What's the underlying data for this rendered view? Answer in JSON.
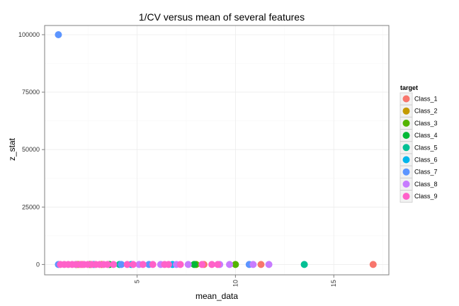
{
  "chart_data": {
    "type": "scatter",
    "title": "1/CV versus mean of several features",
    "xlabel": "mean_data",
    "ylabel": "z_stat",
    "xlim": [
      0.3,
      17.8
    ],
    "ylim": [
      -4500,
      104000
    ],
    "x_ticks": [
      5,
      10,
      15
    ],
    "y_ticks": [
      0,
      25000,
      50000,
      75000,
      100000
    ],
    "x_tick_labels": [
      "5",
      "10",
      "15"
    ],
    "y_tick_labels": [
      "0",
      "25000",
      "50000",
      "75000",
      "100000"
    ],
    "grid": true,
    "legend": {
      "title": "target",
      "position": "right"
    },
    "series": [
      {
        "name": "Class_1",
        "color": "#F8766D",
        "points": [
          [
            11.3,
            0
          ],
          [
            17.0,
            0
          ],
          [
            8.4,
            0
          ],
          [
            2.2,
            0
          ]
        ]
      },
      {
        "name": "Class_2",
        "color": "#C49A00",
        "points": [
          [
            2.0,
            0
          ],
          [
            3.2,
            0
          ]
        ]
      },
      {
        "name": "Class_3",
        "color": "#53B400",
        "points": [
          [
            10.0,
            0
          ],
          [
            8.0,
            0
          ],
          [
            2.6,
            0
          ]
        ]
      },
      {
        "name": "Class_4",
        "color": "#00B936",
        "points": [
          [
            7.9,
            0
          ],
          [
            3.6,
            0
          ],
          [
            1.9,
            0
          ]
        ]
      },
      {
        "name": "Class_5",
        "color": "#00C094",
        "points": [
          [
            13.5,
            0
          ],
          [
            4.1,
            0
          ]
        ]
      },
      {
        "name": "Class_6",
        "color": "#00B6EB",
        "points": [
          [
            6.8,
            0
          ],
          [
            4.7,
            0
          ],
          [
            2.8,
            0
          ]
        ]
      },
      {
        "name": "Class_7",
        "color": "#5C95FF",
        "points": [
          [
            1.0,
            100000
          ],
          [
            1.0,
            0
          ],
          [
            4.2,
            0
          ],
          [
            5.6,
            0
          ],
          [
            10.7,
            0
          ]
        ]
      },
      {
        "name": "Class_8",
        "color": "#C77CFF",
        "points": [
          [
            11.7,
            0
          ],
          [
            10.9,
            0
          ],
          [
            9.7,
            0
          ],
          [
            9.2,
            0
          ],
          [
            7.6,
            0
          ],
          [
            7.0,
            0
          ],
          [
            6.2,
            0
          ],
          [
            5.1,
            0
          ]
        ]
      },
      {
        "name": "Class_9",
        "color": "#FF61C9",
        "points": [
          [
            1.1,
            0
          ],
          [
            1.3,
            0
          ],
          [
            1.5,
            0
          ],
          [
            1.7,
            0
          ],
          [
            1.9,
            0
          ],
          [
            2.1,
            0
          ],
          [
            2.3,
            0
          ],
          [
            2.5,
            0
          ],
          [
            2.7,
            0
          ],
          [
            2.9,
            0
          ],
          [
            3.1,
            0
          ],
          [
            3.3,
            0
          ],
          [
            3.5,
            0
          ],
          [
            3.8,
            0
          ],
          [
            4.5,
            0
          ],
          [
            4.8,
            0
          ],
          [
            5.3,
            0
          ],
          [
            5.8,
            0
          ],
          [
            6.4,
            0
          ],
          [
            6.6,
            0
          ],
          [
            7.2,
            0
          ],
          [
            8.3,
            0
          ],
          [
            8.8,
            0
          ],
          [
            9.1,
            0
          ]
        ]
      }
    ]
  }
}
